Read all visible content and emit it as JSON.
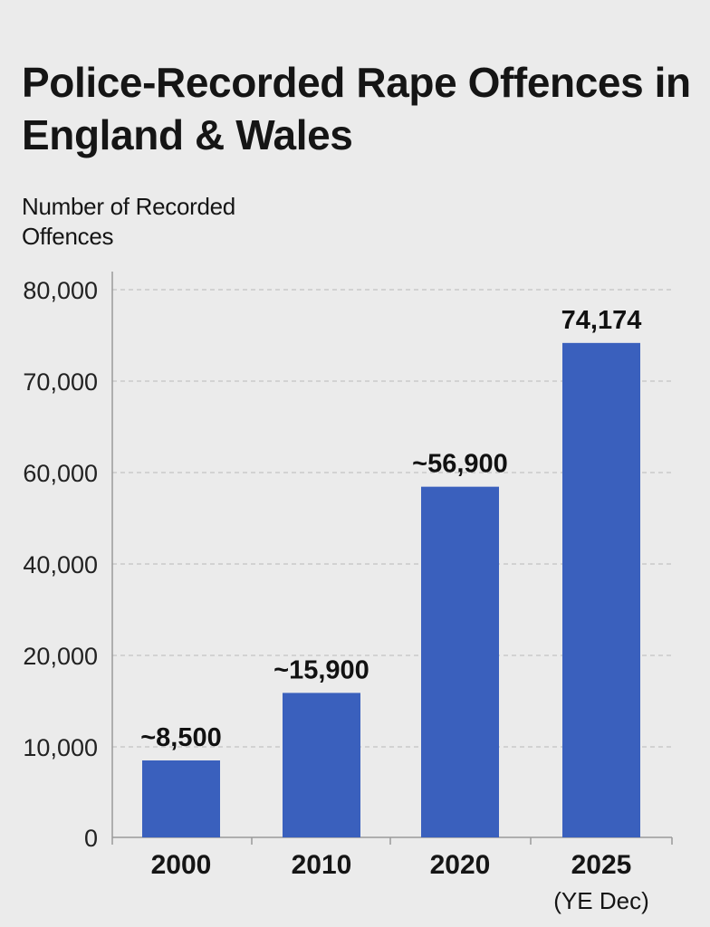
{
  "chart_data": {
    "type": "bar",
    "title": "Police-Recorded Rape Offences in England & Wales",
    "ylabel": "Number of Recorded Offences",
    "xlabel": "",
    "categories": [
      "2000",
      "2010",
      "2020",
      "2025"
    ],
    "category_sublabels": [
      "",
      "",
      "",
      "(YE Dec)"
    ],
    "values": [
      8500,
      15900,
      56900,
      74174
    ],
    "data_labels": [
      "~8,500",
      "~15,900",
      "~56,900",
      "74,174"
    ],
    "y_ticks": [
      {
        "label": "0",
        "value": 0
      },
      {
        "label": "10,000",
        "value": 10000
      },
      {
        "label": "20,000",
        "value": 20000
      },
      {
        "label": "40,000",
        "value": 40000
      },
      {
        "label": "60,000",
        "value": 60000
      },
      {
        "label": "70,000",
        "value": 70000
      },
      {
        "label": "80,000",
        "value": 80000
      }
    ],
    "ylim": [
      0,
      80000
    ],
    "grid": true,
    "bar_color": "#3a60bd",
    "grid_color": "#c4c4c4"
  }
}
